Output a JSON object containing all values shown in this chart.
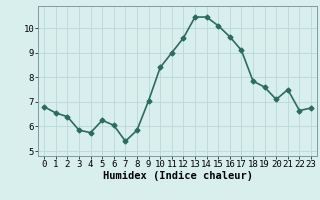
{
  "x": [
    0,
    1,
    2,
    3,
    4,
    5,
    6,
    7,
    8,
    9,
    10,
    11,
    12,
    13,
    14,
    15,
    16,
    17,
    18,
    19,
    20,
    21,
    22,
    23
  ],
  "y": [
    6.8,
    6.55,
    6.4,
    5.85,
    5.75,
    6.25,
    6.05,
    5.4,
    5.85,
    7.05,
    8.4,
    9.0,
    9.6,
    10.45,
    10.45,
    10.1,
    9.65,
    9.1,
    7.85,
    7.6,
    7.1,
    7.5,
    6.65,
    6.75
  ],
  "line_color": "#2d6b5e",
  "marker": "D",
  "marker_size": 2.5,
  "bg_color": "#d8efee",
  "grid_color": "#b8d8d5",
  "xlabel": "Humidex (Indice chaleur)",
  "xlim": [
    -0.5,
    23.5
  ],
  "ylim": [
    4.8,
    10.9
  ],
  "yticks": [
    5,
    6,
    7,
    8,
    9,
    10
  ],
  "xticks": [
    0,
    1,
    2,
    3,
    4,
    5,
    6,
    7,
    8,
    9,
    10,
    11,
    12,
    13,
    14,
    15,
    16,
    17,
    18,
    19,
    20,
    21,
    22,
    23
  ],
  "tick_fontsize": 6.5,
  "xlabel_fontsize": 7.5,
  "linewidth": 1.2
}
